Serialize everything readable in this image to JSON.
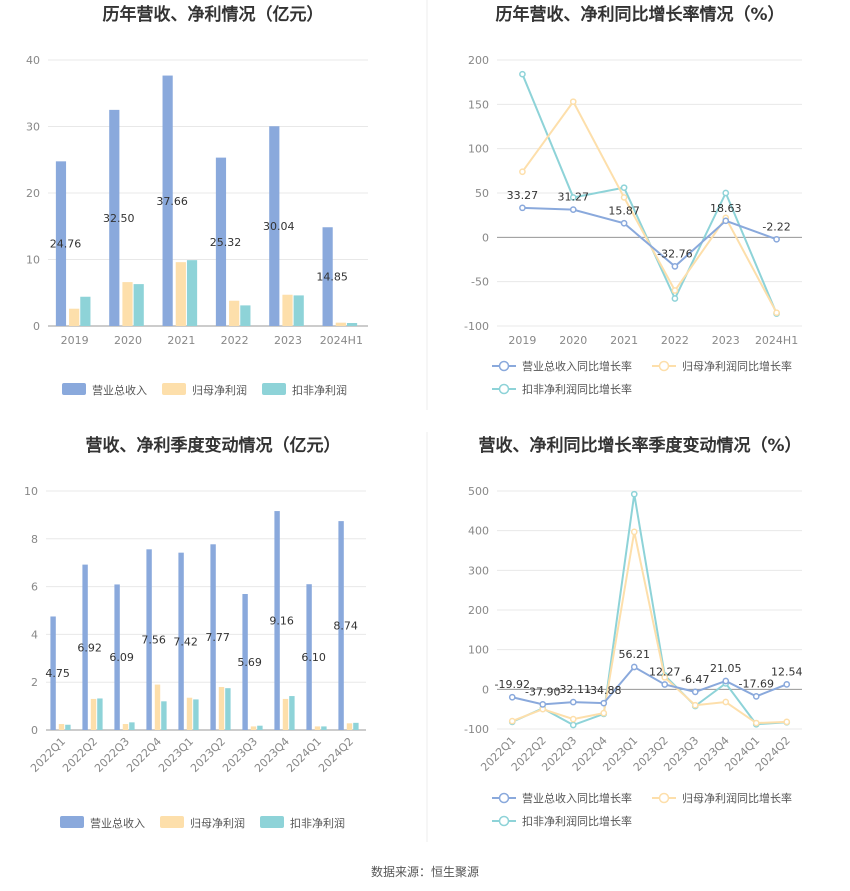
{
  "source": "数据来源：恒生聚源",
  "legend": {
    "bar": [
      "营业总收入",
      "归母净利润",
      "扣非净利润"
    ],
    "line": [
      "营业总收入同比增长率",
      "归母净利润同比增长率",
      "扣非净利润同比增长率"
    ]
  },
  "colors": {
    "revenue": "#8aa9dc",
    "net_profit": "#fddfab",
    "deducted": "#8ed3d8",
    "grid": "#e8e8e8",
    "axis": "#999999"
  },
  "chart_data": [
    {
      "type": "bar",
      "title": "历年营收、净利情况（亿元）",
      "categories": [
        "2019",
        "2020",
        "2021",
        "2022",
        "2023",
        "2024H1"
      ],
      "ylim": [
        0,
        40
      ],
      "yticks": [
        0,
        10,
        20,
        30,
        40
      ],
      "series": [
        {
          "name": "营业总收入",
          "values": [
            24.76,
            32.5,
            37.66,
            25.32,
            30.04,
            14.85
          ]
        },
        {
          "name": "归母净利润",
          "values": [
            2.6,
            6.6,
            9.6,
            3.8,
            4.7,
            0.5
          ]
        },
        {
          "name": "扣非净利润",
          "values": [
            4.4,
            6.3,
            9.9,
            3.1,
            4.6,
            0.45
          ]
        }
      ],
      "data_labels": [
        "24.76",
        "32.50",
        "37.66",
        "25.32",
        "30.04",
        "14.85"
      ],
      "grid": true,
      "legend_position": "bottom"
    },
    {
      "type": "line",
      "title": "历年营收、净利同比增长率情况（%）",
      "categories": [
        "2019",
        "2020",
        "2021",
        "2022",
        "2023",
        "2024H1"
      ],
      "ylim": [
        -100,
        200
      ],
      "yticks": [
        -100,
        -50,
        0,
        50,
        100,
        150,
        200
      ],
      "series": [
        {
          "name": "营业总收入同比增长率",
          "values": [
            33.27,
            31.27,
            15.87,
            -32.76,
            18.63,
            -2.22
          ]
        },
        {
          "name": "归母净利润同比增长率",
          "values": [
            74,
            153,
            45,
            -60,
            22,
            -85
          ]
        },
        {
          "name": "扣非净利润同比增长率",
          "values": [
            184,
            45,
            56,
            -69,
            50,
            -86
          ]
        }
      ],
      "data_labels": [
        "33.27",
        "31.27",
        "15.87",
        "-32.76",
        "18.63",
        "-2.22"
      ],
      "grid": true,
      "legend_position": "bottom"
    },
    {
      "type": "bar",
      "title": "营收、净利季度变动情况（亿元）",
      "categories": [
        "2022Q1",
        "2022Q2",
        "2022Q3",
        "2022Q4",
        "2023Q1",
        "2023Q2",
        "2023Q3",
        "2023Q4",
        "2024Q1",
        "2024Q2"
      ],
      "ylim": [
        0,
        10
      ],
      "yticks": [
        0,
        2,
        4,
        6,
        8,
        10
      ],
      "series": [
        {
          "name": "营业总收入",
          "values": [
            4.75,
            6.92,
            6.09,
            7.56,
            7.42,
            7.77,
            5.69,
            9.16,
            6.1,
            8.74
          ]
        },
        {
          "name": "归母净利润",
          "values": [
            0.25,
            1.3,
            0.25,
            1.9,
            1.35,
            1.8,
            0.15,
            1.3,
            0.15,
            0.28
          ]
        },
        {
          "name": "扣非净利润",
          "values": [
            0.22,
            1.32,
            0.32,
            1.2,
            1.28,
            1.75,
            0.18,
            1.42,
            0.15,
            0.3
          ]
        }
      ],
      "data_labels": [
        "4.75",
        "6.92",
        "6.09",
        "7.56",
        "7.42",
        "7.77",
        "5.69",
        "9.16",
        "6.10",
        "8.74"
      ],
      "grid": true,
      "legend_position": "bottom"
    },
    {
      "type": "line",
      "title": "营收、净利同比增长率季度变动情况（%）",
      "categories": [
        "2022Q1",
        "2022Q2",
        "2022Q3",
        "2022Q4",
        "2023Q1",
        "2023Q2",
        "2023Q3",
        "2023Q4",
        "2024Q1",
        "2024Q2"
      ],
      "ylim": [
        -100,
        500
      ],
      "yticks": [
        -100,
        0,
        100,
        200,
        300,
        400,
        500
      ],
      "series": [
        {
          "name": "营业总收入同比增长率",
          "values": [
            -19.92,
            -37.9,
            -32.11,
            -34.88,
            56.21,
            12.27,
            -6.47,
            21.05,
            -17.69,
            12.54
          ]
        },
        {
          "name": "归母净利润同比增长率",
          "values": [
            -80,
            -50,
            -75,
            -60,
            397,
            30,
            -40,
            -32,
            -85,
            -82
          ]
        },
        {
          "name": "扣非净利润同比增长率",
          "values": [
            -82,
            -48,
            -90,
            -62,
            492,
            35,
            -42,
            15,
            -88,
            -83
          ]
        }
      ],
      "data_labels": [
        "-19.92",
        "-37.90",
        "-32.11",
        "-34.88",
        "56.21",
        "12.27",
        "-6.47",
        "21.05",
        "-17.69",
        "12.54"
      ],
      "grid": true,
      "legend_position": "bottom"
    }
  ]
}
